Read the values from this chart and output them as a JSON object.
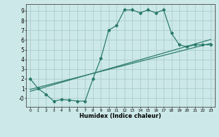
{
  "xlabel": "Humidex (Indice chaleur)",
  "bg_color": "#cce8e8",
  "grid_color": "#aacccc",
  "line_color": "#2a7a6a",
  "xlim": [
    -0.5,
    23.5
  ],
  "ylim": [
    -0.9,
    9.7
  ],
  "xticks": [
    0,
    1,
    2,
    3,
    4,
    5,
    6,
    7,
    8,
    9,
    10,
    11,
    12,
    13,
    14,
    15,
    16,
    17,
    18,
    19,
    20,
    21,
    22,
    23
  ],
  "yticks": [
    0,
    1,
    2,
    3,
    4,
    5,
    6,
    7,
    8,
    9
  ],
  "ytick_labels": [
    "-0",
    "1",
    "2",
    "3",
    "4",
    "5",
    "6",
    "7",
    "8",
    "9"
  ],
  "line1_x": [
    0,
    1,
    2,
    3,
    4,
    5,
    6,
    7,
    8,
    9,
    10,
    11,
    12,
    13,
    14,
    15,
    16,
    17,
    18,
    19,
    20,
    21,
    22,
    23
  ],
  "line1_y": [
    2.0,
    1.0,
    0.4,
    -0.3,
    -0.15,
    -0.2,
    -0.3,
    -0.3,
    2.0,
    4.1,
    7.0,
    7.5,
    9.1,
    9.1,
    8.8,
    9.1,
    8.8,
    9.1,
    6.7,
    5.5,
    5.3,
    5.5,
    5.5,
    5.5
  ],
  "line2_x": [
    0,
    23
  ],
  "line2_y": [
    0.9,
    5.65
  ],
  "line3_x": [
    0,
    23
  ],
  "line3_y": [
    0.7,
    6.05
  ]
}
